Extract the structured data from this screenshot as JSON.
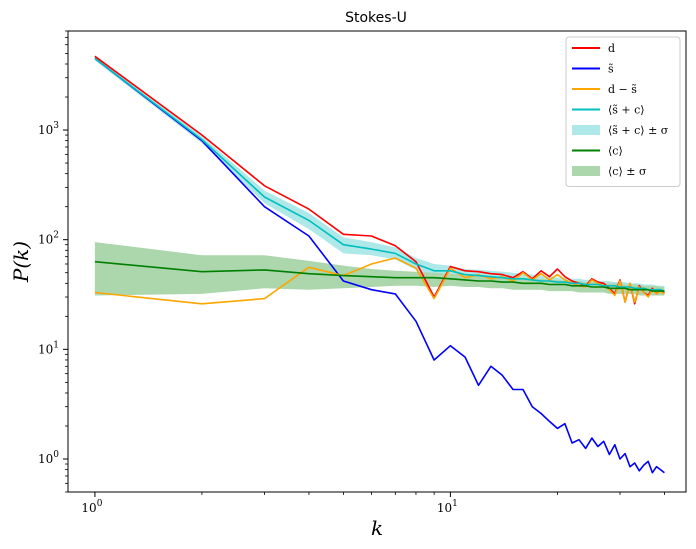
{
  "chart_data": {
    "type": "line",
    "title": "Stokes-U",
    "xlabel": "k",
    "ylabel": "P(k)",
    "xscale": "log",
    "yscale": "log",
    "xlim": [
      0.84,
      46
    ],
    "ylim": [
      0.5,
      8000
    ],
    "grid": false,
    "legend_position": "top-right",
    "x_ticks": [
      {
        "value": 1,
        "label": "10",
        "exp": "0"
      },
      {
        "value": 10,
        "label": "10",
        "exp": "1"
      }
    ],
    "y_ticks": [
      {
        "value": 1,
        "label": "10",
        "exp": "0"
      },
      {
        "value": 10,
        "label": "10",
        "exp": "1"
      },
      {
        "value": 100,
        "label": "10",
        "exp": "2"
      },
      {
        "value": 1000,
        "label": "10",
        "exp": "3"
      }
    ],
    "x": [
      1,
      2,
      3,
      4,
      5,
      6,
      7,
      8,
      9,
      10,
      11,
      12,
      13,
      14,
      15,
      16,
      17,
      18,
      19,
      20,
      21,
      22,
      23,
      24,
      25,
      26,
      27,
      28,
      29,
      30,
      31,
      32,
      33,
      34,
      35,
      36,
      37,
      38,
      39,
      40
    ],
    "series": [
      {
        "name": "d",
        "color": "#ff0000",
        "kind": "line",
        "values": [
          4700,
          900,
          310,
          190,
          112,
          108,
          88,
          63,
          30,
          57,
          52,
          51,
          49,
          48,
          45,
          51,
          44,
          52,
          46,
          54,
          46,
          42,
          40,
          38,
          44,
          41,
          40,
          36,
          32,
          43,
          27,
          40,
          26,
          38,
          33,
          31,
          36,
          32,
          35,
          33
        ]
      },
      {
        "name": "s̃",
        "color": "#0000ff",
        "kind": "line",
        "values": [
          4500,
          800,
          200,
          108,
          42,
          35,
          32,
          18,
          8,
          10.8,
          8.5,
          4.7,
          7,
          5.8,
          4.3,
          4.3,
          3,
          2.6,
          2.2,
          1.9,
          2.1,
          1.4,
          1.5,
          1.25,
          1.55,
          1.3,
          1.45,
          1.1,
          1.35,
          1.0,
          1.12,
          0.85,
          0.92,
          0.78,
          0.88,
          0.95,
          0.75,
          0.85,
          0.8,
          0.75
        ]
      },
      {
        "name": "d − s̃",
        "color": "#ffa500",
        "kind": "line",
        "values": [
          33,
          26,
          29,
          56,
          47,
          60,
          68,
          55,
          29,
          55,
          45,
          48,
          44,
          46,
          42,
          50,
          43,
          49,
          43,
          48,
          43,
          40,
          38,
          37,
          43,
          40,
          38,
          35,
          31,
          42,
          27,
          40,
          27,
          37,
          33,
          30,
          35,
          32,
          34,
          32
        ]
      },
      {
        "name": "⟨s̃ + c⟩",
        "color": "#00bfbf",
        "kind": "line",
        "values": [
          4500,
          820,
          245,
          150,
          90,
          82,
          75,
          60,
          52,
          52,
          48,
          47,
          46,
          45,
          44,
          44,
          43,
          42,
          42,
          41,
          41,
          40,
          40,
          39,
          39,
          39,
          38,
          38,
          38,
          37,
          37,
          37,
          36,
          36,
          36,
          35,
          35,
          35,
          35,
          34
        ]
      },
      {
        "name": "⟨s̃ + c⟩ ± σ",
        "color": "#aee8e8",
        "kind": "band",
        "lower": [
          4300,
          760,
          215,
          125,
          75,
          72,
          66,
          53,
          45,
          46,
          42,
          41,
          40,
          40,
          39,
          39,
          38,
          38,
          37,
          37,
          37,
          36,
          36,
          35,
          35,
          35,
          34,
          34,
          34,
          34,
          33,
          33,
          33,
          33,
          32,
          32,
          32,
          32,
          32,
          31
        ],
        "upper": [
          4800,
          880,
          280,
          175,
          105,
          95,
          85,
          68,
          60,
          58,
          54,
          53,
          52,
          51,
          50,
          49,
          48,
          47,
          46,
          45,
          45,
          44,
          44,
          43,
          43,
          42,
          42,
          42,
          41,
          41,
          41,
          40,
          40,
          40,
          39,
          39,
          39,
          38,
          38,
          38
        ]
      },
      {
        "name": "⟨c⟩",
        "color": "#008000",
        "kind": "line",
        "values": [
          63,
          51,
          53,
          49,
          47,
          46,
          45,
          45,
          45,
          44,
          43,
          42,
          42,
          41,
          41,
          40,
          40,
          40,
          39,
          39,
          39,
          38,
          38,
          38,
          37,
          37,
          37,
          36,
          36,
          36,
          36,
          35,
          35,
          35,
          35,
          35,
          34,
          34,
          34,
          34
        ]
      },
      {
        "name": "⟨c⟩ ± σ",
        "color": "#acd6ac",
        "kind": "band",
        "lower": [
          31,
          32,
          36,
          35,
          36,
          37,
          38,
          38,
          37,
          38,
          37,
          37,
          36,
          36,
          35,
          35,
          35,
          35,
          34,
          34,
          34,
          34,
          33,
          33,
          33,
          33,
          33,
          32,
          32,
          32,
          32,
          32,
          32,
          31,
          31,
          31,
          31,
          31,
          31,
          31
        ],
        "upper": [
          95,
          72,
          72,
          64,
          58,
          54,
          52,
          51,
          50,
          49,
          48,
          47,
          46,
          46,
          45,
          45,
          44,
          44,
          43,
          43,
          42,
          42,
          42,
          41,
          41,
          41,
          40,
          40,
          40,
          40,
          39,
          39,
          39,
          39,
          38,
          38,
          38,
          38,
          37,
          37
        ]
      }
    ]
  }
}
